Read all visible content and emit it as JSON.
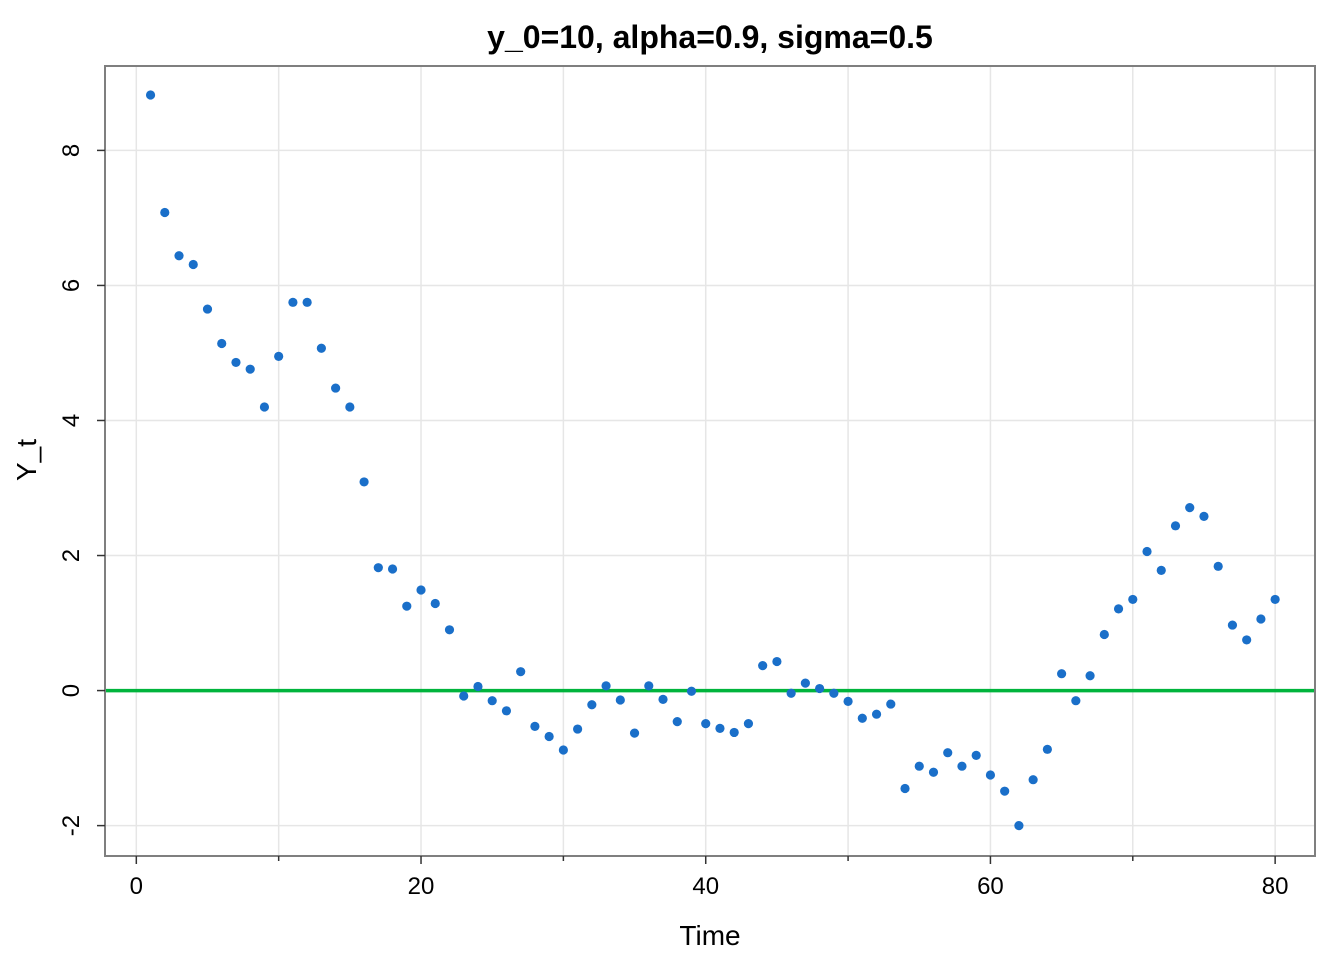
{
  "chart_data": {
    "type": "scatter",
    "title": "y_0=10, alpha=0.9, sigma=0.5",
    "xlabel": "Time",
    "ylabel": "Y_t",
    "xlim": [
      -2.2,
      82.8
    ],
    "ylim": [
      -2.45,
      9.25
    ],
    "grid": true,
    "x_ticks": [
      0,
      20,
      40,
      60,
      80
    ],
    "y_ticks": [
      -2,
      0,
      2,
      4,
      6,
      8
    ],
    "x_minor_ticks": [
      10,
      30,
      50,
      70
    ],
    "x_tick_labels": [
      "0",
      "20",
      "40",
      "60",
      "80"
    ],
    "y_tick_labels": [
      "-2",
      "0",
      "2",
      "4",
      "6",
      "8"
    ],
    "point_color": "#1a6fc9",
    "reference_line": {
      "y": 0,
      "color": "#00b43c"
    },
    "series": [
      {
        "x": [
          1,
          2,
          3,
          4,
          5,
          6,
          7,
          8,
          9,
          10,
          11,
          12,
          13,
          14,
          15,
          16,
          17,
          18,
          19,
          20,
          21,
          22,
          23,
          24,
          25,
          26,
          27,
          28,
          29,
          30,
          31,
          32,
          33,
          34,
          35,
          36,
          37,
          38,
          39,
          40,
          41,
          42,
          43,
          44,
          45,
          46,
          47,
          48,
          49,
          50,
          51,
          52,
          53,
          54,
          55,
          56,
          57,
          58,
          59,
          60,
          61,
          62,
          63,
          64,
          65,
          66,
          67,
          68,
          69,
          70,
          71,
          72,
          73,
          74,
          75,
          76,
          77,
          78,
          79,
          80
        ],
        "values": [
          8.82,
          7.08,
          6.44,
          6.31,
          5.65,
          5.14,
          4.86,
          4.76,
          4.2,
          4.95,
          5.75,
          5.75,
          5.07,
          4.48,
          4.2,
          3.09,
          1.82,
          1.8,
          1.25,
          1.49,
          1.29,
          0.9,
          -0.08,
          0.06,
          -0.15,
          -0.3,
          0.28,
          -0.53,
          -0.68,
          -0.88,
          -0.57,
          -0.21,
          0.07,
          -0.14,
          -0.63,
          0.07,
          -0.13,
          -0.46,
          -0.01,
          -0.49,
          -0.56,
          -0.62,
          -0.49,
          0.37,
          0.43,
          -0.04,
          0.11,
          0.03,
          -0.04,
          -0.16,
          -0.41,
          -0.35,
          -0.2,
          -1.45,
          -1.12,
          -1.21,
          -0.92,
          -1.12,
          -0.96,
          -1.25,
          -1.49,
          -2.0,
          -1.32,
          -0.87,
          0.25,
          -0.15,
          0.22,
          0.83,
          1.21,
          1.35,
          2.06,
          1.78,
          2.44,
          2.71,
          2.58,
          1.84,
          0.97,
          0.75,
          1.06,
          1.35
        ]
      }
    ]
  }
}
